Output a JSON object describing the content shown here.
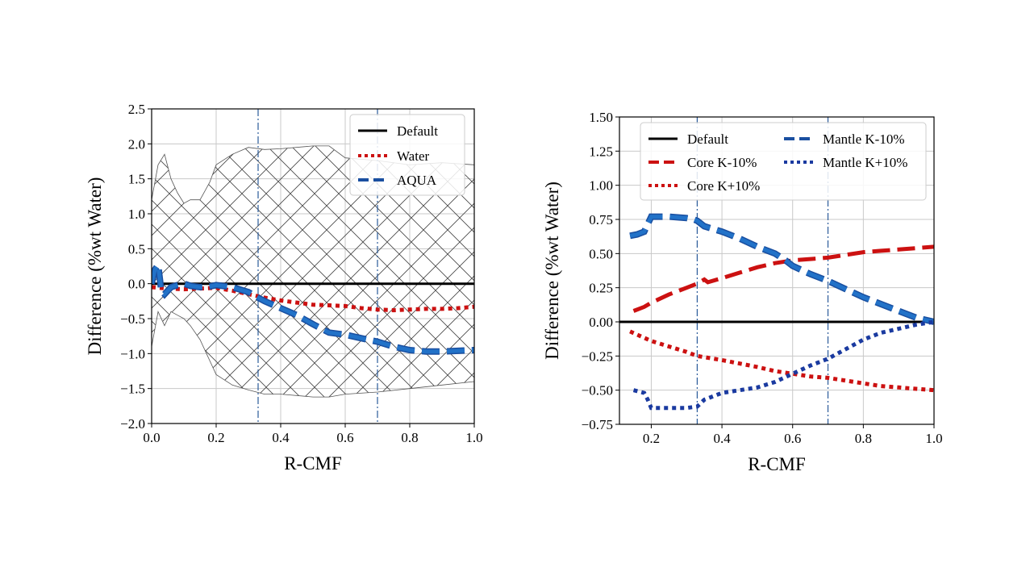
{
  "chart_data": [
    {
      "type": "line",
      "xlabel": "R-CMF",
      "ylabel": "Difference (%wt Water)",
      "xlim": [
        0.0,
        1.0
      ],
      "ylim": [
        -2.0,
        2.5
      ],
      "xticks": [
        "0.0",
        "0.2",
        "0.4",
        "0.6",
        "0.8",
        "1.0"
      ],
      "yticks": [
        "−2.0",
        "−1.5",
        "−1.0",
        "−0.5",
        "0.0",
        "0.5",
        "1.0",
        "1.5",
        "2.0",
        "2.5"
      ],
      "grid": true,
      "legend_position": "top-right",
      "vlines": [
        0.33,
        0.7
      ],
      "uncertainty_band": {
        "x": [
          0.0,
          0.02,
          0.04,
          0.06,
          0.08,
          0.1,
          0.12,
          0.15,
          0.18,
          0.2,
          0.25,
          0.3,
          0.35,
          0.4,
          0.5,
          0.55,
          0.6,
          0.7,
          0.8,
          0.9,
          1.0
        ],
        "upper": [
          1.2,
          1.7,
          1.85,
          1.5,
          1.3,
          1.15,
          1.2,
          1.2,
          1.45,
          1.7,
          1.85,
          1.95,
          1.92,
          1.93,
          1.97,
          1.97,
          1.8,
          1.76,
          1.7,
          1.73,
          1.7
        ],
        "lower": [
          -0.9,
          -0.4,
          -0.6,
          -0.4,
          -0.45,
          -0.5,
          -0.6,
          -0.8,
          -1.1,
          -1.3,
          -1.45,
          -1.52,
          -1.58,
          -1.58,
          -1.62,
          -1.62,
          -1.58,
          -1.55,
          -1.5,
          -1.45,
          -1.4
        ]
      },
      "series": [
        {
          "name": "Default",
          "color": "#000000",
          "style": "solid",
          "x": [
            0.0,
            1.0
          ],
          "y": [
            0.0,
            0.0
          ]
        },
        {
          "name": "Water",
          "color": "#cc1111",
          "style": "dotted",
          "x": [
            0.0,
            0.05,
            0.1,
            0.15,
            0.2,
            0.25,
            0.3,
            0.35,
            0.4,
            0.45,
            0.5,
            0.55,
            0.6,
            0.65,
            0.7,
            0.75,
            0.8,
            0.85,
            0.9,
            0.95,
            1.0
          ],
          "y": [
            -0.05,
            -0.07,
            -0.08,
            -0.07,
            -0.06,
            -0.1,
            -0.15,
            -0.2,
            -0.24,
            -0.27,
            -0.3,
            -0.31,
            -0.32,
            -0.35,
            -0.37,
            -0.38,
            -0.37,
            -0.36,
            -0.36,
            -0.35,
            -0.33
          ]
        },
        {
          "name": "AQUA",
          "color": "#1a4fa0",
          "fill": "#2272c8",
          "style": "dashed",
          "x": [
            0.0,
            0.01,
            0.02,
            0.03,
            0.04,
            0.06,
            0.08,
            0.1,
            0.12,
            0.15,
            0.18,
            0.2,
            0.25,
            0.3,
            0.33,
            0.35,
            0.4,
            0.45,
            0.5,
            0.55,
            0.6,
            0.65,
            0.7,
            0.75,
            0.8,
            0.85,
            0.9,
            0.95,
            1.0
          ],
          "y": [
            0.0,
            0.2,
            0.27,
            -0.1,
            -0.15,
            -0.05,
            -0.02,
            0.0,
            -0.03,
            -0.05,
            -0.04,
            -0.02,
            -0.05,
            -0.12,
            -0.2,
            -0.25,
            -0.35,
            -0.45,
            -0.58,
            -0.7,
            -0.73,
            -0.78,
            -0.83,
            -0.9,
            -0.95,
            -0.97,
            -0.97,
            -0.96,
            -0.95
          ]
        }
      ]
    },
    {
      "type": "line",
      "xlabel": "R-CMF",
      "ylabel": "Difference (%wt Water)",
      "xlim": [
        0.11,
        1.0
      ],
      "ylim": [
        -0.75,
        1.5
      ],
      "xticks": [
        "0.2",
        "0.4",
        "0.6",
        "0.8",
        "1.0"
      ],
      "yticks": [
        "−0.75",
        "−0.50",
        "−0.25",
        "0.00",
        "0.25",
        "0.50",
        "0.75",
        "1.00",
        "1.25",
        "1.50"
      ],
      "grid": true,
      "legend_position": "top-center",
      "vlines": [
        0.33,
        0.7
      ],
      "series": [
        {
          "name": "Default",
          "color": "#000000",
          "style": "solid",
          "x": [
            0.11,
            1.0
          ],
          "y": [
            0.0,
            0.0
          ]
        },
        {
          "name": "Core K-10%",
          "color": "#cc1111",
          "style": "dashed",
          "x": [
            0.15,
            0.18,
            0.2,
            0.25,
            0.3,
            0.33,
            0.35,
            0.36,
            0.4,
            0.45,
            0.5,
            0.55,
            0.6,
            0.65,
            0.7,
            0.75,
            0.8,
            0.85,
            0.9,
            0.95,
            1.0
          ],
          "y": [
            0.08,
            0.11,
            0.14,
            0.2,
            0.25,
            0.28,
            0.31,
            0.29,
            0.32,
            0.36,
            0.4,
            0.43,
            0.45,
            0.46,
            0.47,
            0.49,
            0.51,
            0.52,
            0.53,
            0.54,
            0.55
          ]
        },
        {
          "name": "Core K+10%",
          "color": "#cc1111",
          "style": "dotted",
          "x": [
            0.14,
            0.2,
            0.25,
            0.3,
            0.33,
            0.4,
            0.5,
            0.55,
            0.6,
            0.65,
            0.7,
            0.75,
            0.8,
            0.85,
            0.9,
            0.95,
            1.0
          ],
          "y": [
            -0.07,
            -0.14,
            -0.18,
            -0.22,
            -0.25,
            -0.28,
            -0.33,
            -0.36,
            -0.38,
            -0.4,
            -0.41,
            -0.43,
            -0.45,
            -0.47,
            -0.48,
            -0.49,
            -0.5
          ]
        },
        {
          "name": "Mantle K-10%",
          "color": "#1a4fa0",
          "fill": "#2272c8",
          "style": "dashed",
          "x": [
            0.14,
            0.16,
            0.18,
            0.2,
            0.25,
            0.3,
            0.32,
            0.33,
            0.35,
            0.4,
            0.45,
            0.5,
            0.55,
            0.58,
            0.6,
            0.65,
            0.7,
            0.75,
            0.8,
            0.85,
            0.9,
            0.95,
            1.0
          ],
          "y": [
            0.63,
            0.64,
            0.66,
            0.77,
            0.77,
            0.76,
            0.75,
            0.74,
            0.7,
            0.66,
            0.61,
            0.55,
            0.5,
            0.45,
            0.41,
            0.35,
            0.3,
            0.24,
            0.18,
            0.13,
            0.08,
            0.03,
            0.0
          ]
        },
        {
          "name": "Mantle K+10%",
          "color": "#1a3aa0",
          "style": "dotted",
          "x": [
            0.15,
            0.18,
            0.19,
            0.2,
            0.25,
            0.3,
            0.33,
            0.35,
            0.4,
            0.45,
            0.5,
            0.55,
            0.6,
            0.65,
            0.7,
            0.75,
            0.8,
            0.85,
            0.9,
            0.95,
            1.0
          ],
          "y": [
            -0.5,
            -0.52,
            -0.57,
            -0.63,
            -0.63,
            -0.63,
            -0.62,
            -0.57,
            -0.52,
            -0.5,
            -0.48,
            -0.44,
            -0.38,
            -0.32,
            -0.27,
            -0.2,
            -0.13,
            -0.08,
            -0.05,
            -0.02,
            0.0
          ]
        }
      ]
    }
  ]
}
